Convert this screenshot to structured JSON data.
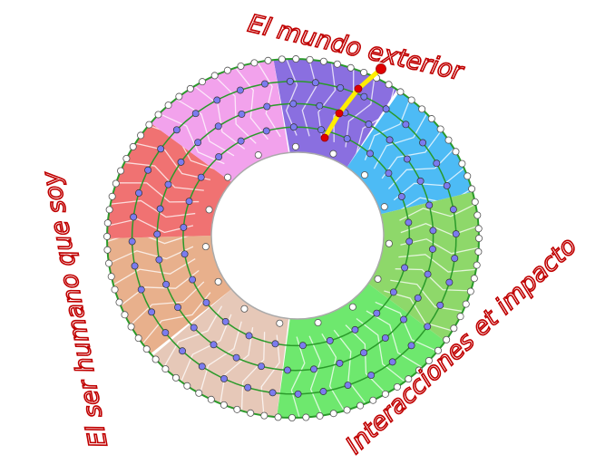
{
  "labels": {
    "top": "El mundo exterior",
    "left": "El ser humano que soy",
    "bottom_right": "Interacciones et impacto"
  },
  "colors": {
    "label_text": "#c00000",
    "ring_line": "#2a9a2a",
    "node_outer": "#ffffff",
    "node_inner": "#7b7bef",
    "path_highlight": "#ffee00",
    "path_node": "#e00000",
    "sectors": [
      "#8a6fe0",
      "#4dbbf5",
      "#8ed86a",
      "#6ee86e",
      "#e6c8b8",
      "#e8b08c",
      "#f07272",
      "#f2a2ec"
    ]
  }
}
